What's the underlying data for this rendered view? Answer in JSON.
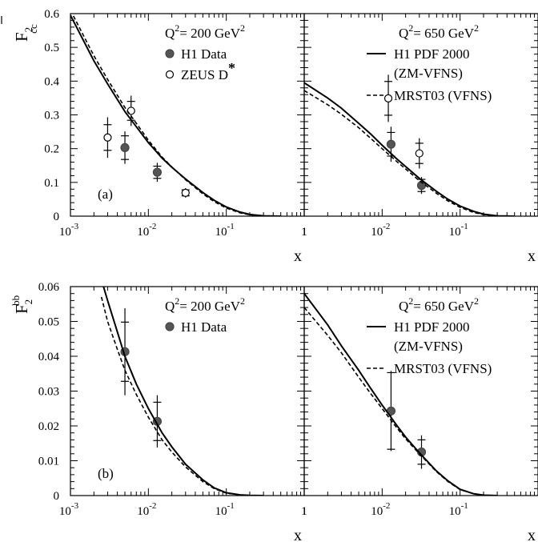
{
  "chart_data": [
    {
      "type": "scatter",
      "panel": "a",
      "panel_label": "(a)",
      "ylabel": "F2cc",
      "ylabel_parts": {
        "main": "F",
        "sub": "2",
        "sup": "cc"
      },
      "xlabel": "x",
      "x_scale": "log",
      "xlim": [
        0.001,
        1
      ],
      "ylim": [
        0,
        0.6
      ],
      "y_ticks": [
        "0",
        "0.1",
        "0.2",
        "0.3",
        "0.4",
        "0.5",
        "0.6"
      ],
      "y_tick_values": [
        0,
        0.1,
        0.2,
        0.3,
        0.4,
        0.5,
        0.6
      ],
      "subplots": [
        {
          "id": "q200",
          "q2_label": "Q2= 200 GeV2",
          "q2_parts": {
            "pre": "Q",
            "sup1": "2",
            "mid": "= 200 GeV",
            "sup2": "2"
          },
          "x_tick_labels": [
            {
              "value": 0.001,
              "base": "10",
              "exp": "-3"
            },
            {
              "value": 0.01,
              "base": "10",
              "exp": "-2"
            },
            {
              "value": 0.1,
              "base": "10",
              "exp": "-1"
            },
            {
              "value": 1,
              "label": "1"
            }
          ],
          "legend": [
            {
              "name": "H1 Data",
              "marker": "filled-circle"
            },
            {
              "name": "ZEUS D*",
              "name_parts": {
                "main": "ZEUS D",
                "sup": "*"
              },
              "marker": "open-circle"
            }
          ],
          "series": [
            {
              "name": "H1 Data",
              "marker": "filled-circle",
              "points": [
                {
                  "x": 0.005,
                  "y": 0.203,
                  "err_stat": 0.035,
                  "err_tot": 0.048
                },
                {
                  "x": 0.013,
                  "y": 0.13,
                  "err_stat": 0.018,
                  "err_tot": 0.028
                }
              ]
            },
            {
              "name": "ZEUS D*",
              "marker": "open-circle",
              "points": [
                {
                  "x": 0.003,
                  "y": 0.233,
                  "err_stat": 0.038,
                  "err_tot": 0.06
                },
                {
                  "x": 0.006,
                  "y": 0.312,
                  "err_stat": 0.028,
                  "err_tot": 0.045
                },
                {
                  "x": 0.03,
                  "y": 0.069,
                  "err_stat": 0.009,
                  "err_tot": 0.014
                }
              ]
            },
            {
              "name": "H1 PDF 2000 (ZM-VFNS)",
              "style": "solid",
              "x": [
                0.001,
                0.002,
                0.003,
                0.005,
                0.007,
                0.01,
                0.015,
                0.02,
                0.03,
                0.05,
                0.07,
                0.1,
                0.15,
                0.2,
                0.3,
                0.5
              ],
              "y": [
                0.595,
                0.46,
                0.392,
                0.31,
                0.265,
                0.218,
                0.172,
                0.145,
                0.11,
                0.07,
                0.047,
                0.027,
                0.012,
                0.005,
                0.001,
                0.0
              ]
            },
            {
              "name": "MRST03 (VFNS)",
              "style": "dashed",
              "x": [
                0.001,
                0.002,
                0.003,
                0.005,
                0.007,
                0.01,
                0.015,
                0.02,
                0.03,
                0.05,
                0.07,
                0.1,
                0.15,
                0.2,
                0.3,
                0.5
              ],
              "y": [
                0.61,
                0.475,
                0.405,
                0.322,
                0.275,
                0.225,
                0.175,
                0.146,
                0.108,
                0.066,
                0.043,
                0.024,
                0.01,
                0.004,
                0.0005,
                0.0
              ]
            }
          ]
        },
        {
          "id": "q650",
          "q2_label": "Q2= 650 GeV2",
          "q2_parts": {
            "pre": "Q",
            "sup1": "2",
            "mid": "= 650 GeV",
            "sup2": "2"
          },
          "x_tick_labels": [
            {
              "value": 0.001,
              "label": "1"
            },
            {
              "value": 0.01,
              "base": "10",
              "exp": "-2"
            },
            {
              "value": 0.1,
              "base": "10",
              "exp": "-1"
            }
          ],
          "legend": [
            {
              "name": "H1 PDF 2000",
              "name_line2": "(ZM-VFNS)",
              "style": "solid"
            },
            {
              "name": "MRST03 (VFNS)",
              "style": "dashed"
            }
          ],
          "series": [
            {
              "name": "H1 Data",
              "marker": "filled-circle",
              "points": [
                {
                  "x": 0.013,
                  "y": 0.213,
                  "err_stat": 0.035,
                  "err_tot": 0.052
                },
                {
                  "x": 0.032,
                  "y": 0.091,
                  "err_stat": 0.018,
                  "err_tot": 0.025
                }
              ]
            },
            {
              "name": "ZEUS D*",
              "marker": "open-circle",
              "points": [
                {
                  "x": 0.012,
                  "y": 0.349,
                  "err_stat": 0.05,
                  "err_tot": 0.07
                },
                {
                  "x": 0.03,
                  "y": 0.186,
                  "err_stat": 0.03,
                  "err_tot": 0.045
                }
              ]
            },
            {
              "name": "H1 PDF 2000 (ZM-VFNS)",
              "style": "solid",
              "x": [
                0.001,
                0.002,
                0.003,
                0.005,
                0.007,
                0.01,
                0.015,
                0.02,
                0.03,
                0.05,
                0.07,
                0.1,
                0.15,
                0.2,
                0.3,
                0.5
              ],
              "y": [
                0.395,
                0.35,
                0.32,
                0.275,
                0.245,
                0.21,
                0.172,
                0.147,
                0.112,
                0.073,
                0.05,
                0.03,
                0.014,
                0.006,
                0.001,
                0.0
              ]
            },
            {
              "name": "MRST03 (VFNS)",
              "style": "dashed",
              "x": [
                0.001,
                0.002,
                0.003,
                0.005,
                0.007,
                0.01,
                0.015,
                0.02,
                0.03,
                0.05,
                0.07,
                0.1,
                0.15,
                0.2,
                0.3,
                0.5
              ],
              "y": [
                0.372,
                0.33,
                0.302,
                0.262,
                0.232,
                0.2,
                0.164,
                0.14,
                0.105,
                0.067,
                0.045,
                0.026,
                0.011,
                0.0045,
                0.0008,
                0.0
              ]
            }
          ]
        }
      ]
    },
    {
      "type": "scatter",
      "panel": "b",
      "panel_label": "(b)",
      "ylabel": "F2bb",
      "ylabel_parts": {
        "main": "F",
        "sub": "2",
        "sup": "bb"
      },
      "xlabel": "x",
      "x_scale": "log",
      "xlim": [
        0.001,
        1
      ],
      "ylim": [
        0,
        0.06
      ],
      "y_ticks": [
        "0",
        "0.01",
        "0.02",
        "0.03",
        "0.04",
        "0.05",
        "0.06"
      ],
      "y_tick_values": [
        0,
        0.01,
        0.02,
        0.03,
        0.04,
        0.05,
        0.06
      ],
      "subplots": [
        {
          "id": "q200",
          "q2_label": "Q2= 200 GeV2",
          "q2_parts": {
            "pre": "Q",
            "sup1": "2",
            "mid": "= 200 GeV",
            "sup2": "2"
          },
          "x_tick_labels": [
            {
              "value": 0.001,
              "base": "10",
              "exp": "-3"
            },
            {
              "value": 0.01,
              "base": "10",
              "exp": "-2"
            },
            {
              "value": 0.1,
              "base": "10",
              "exp": "-1"
            },
            {
              "value": 1,
              "label": "1"
            }
          ],
          "legend": [
            {
              "name": "H1 Data",
              "marker": "filled-circle"
            }
          ],
          "series": [
            {
              "name": "H1 Data",
              "marker": "filled-circle",
              "points": [
                {
                  "x": 0.005,
                  "y": 0.0413,
                  "err_stat": 0.0085,
                  "err_tot": 0.0125
                },
                {
                  "x": 0.013,
                  "y": 0.0213,
                  "err_stat": 0.0055,
                  "err_tot": 0.0075
                }
              ]
            },
            {
              "name": "H1 PDF 2000 (ZM-VFNS)",
              "style": "solid",
              "x": [
                0.0025,
                0.003,
                0.004,
                0.005,
                0.007,
                0.01,
                0.015,
                0.02,
                0.03,
                0.05,
                0.07,
                0.1,
                0.15,
                0.2,
                0.3
              ],
              "y": [
                0.062,
                0.056,
                0.047,
                0.04,
                0.032,
                0.025,
                0.018,
                0.014,
                0.009,
                0.0045,
                0.0022,
                0.0008,
                0.0002,
                5e-05,
                0.0
              ]
            },
            {
              "name": "MRST03 (VFNS)",
              "style": "dashed",
              "x": [
                0.0025,
                0.003,
                0.004,
                0.005,
                0.007,
                0.01,
                0.015,
                0.02,
                0.03,
                0.05,
                0.07,
                0.1,
                0.15,
                0.2,
                0.3
              ],
              "y": [
                0.057,
                0.05,
                0.042,
                0.036,
                0.029,
                0.0225,
                0.016,
                0.0125,
                0.0082,
                0.004,
                0.002,
                0.0007,
                0.0002,
                5e-05,
                0.0
              ]
            }
          ]
        },
        {
          "id": "q650",
          "q2_label": "Q2= 650 GeV2",
          "q2_parts": {
            "pre": "Q",
            "sup1": "2",
            "mid": "= 650 GeV",
            "sup2": "2"
          },
          "x_tick_labels": [
            {
              "value": 0.001,
              "label": "1"
            },
            {
              "value": 0.01,
              "base": "10",
              "exp": "-2"
            },
            {
              "value": 0.1,
              "base": "10",
              "exp": "-1"
            }
          ],
          "legend": [
            {
              "name": "H1 PDF 2000",
              "name_line2": "(ZM-VFNS)",
              "style": "solid"
            },
            {
              "name": "MRST03 (VFNS)",
              "style": "dashed"
            }
          ],
          "series": [
            {
              "name": "H1 Data",
              "marker": "filled-circle",
              "points": [
                {
                  "x": 0.013,
                  "y": 0.0243,
                  "err_stat": 0.011,
                  "err_tot": 0.0115
                },
                {
                  "x": 0.032,
                  "y": 0.0125,
                  "err_stat": 0.0035,
                  "err_tot": 0.0048
                }
              ]
            },
            {
              "name": "H1 PDF 2000 (ZM-VFNS)",
              "style": "solid",
              "x": [
                0.001,
                0.002,
                0.003,
                0.005,
                0.007,
                0.01,
                0.015,
                0.02,
                0.03,
                0.05,
                0.07,
                0.1,
                0.15,
                0.2,
                0.3
              ],
              "y": [
                0.058,
                0.049,
                0.043,
                0.036,
                0.031,
                0.026,
                0.0205,
                0.0168,
                0.0123,
                0.007,
                0.0042,
                0.0018,
                0.0005,
                0.00012,
                0.0
              ]
            },
            {
              "name": "MRST03 (VFNS)",
              "style": "dashed",
              "x": [
                0.001,
                0.002,
                0.003,
                0.005,
                0.007,
                0.01,
                0.015,
                0.02,
                0.03,
                0.05,
                0.07,
                0.1,
                0.15,
                0.2,
                0.3
              ],
              "y": [
                0.054,
                0.046,
                0.041,
                0.034,
                0.0295,
                0.025,
                0.0198,
                0.0163,
                0.012,
                0.0068,
                0.004,
                0.0017,
                0.0005,
                0.0001,
                0.0
              ]
            }
          ]
        }
      ]
    }
  ]
}
